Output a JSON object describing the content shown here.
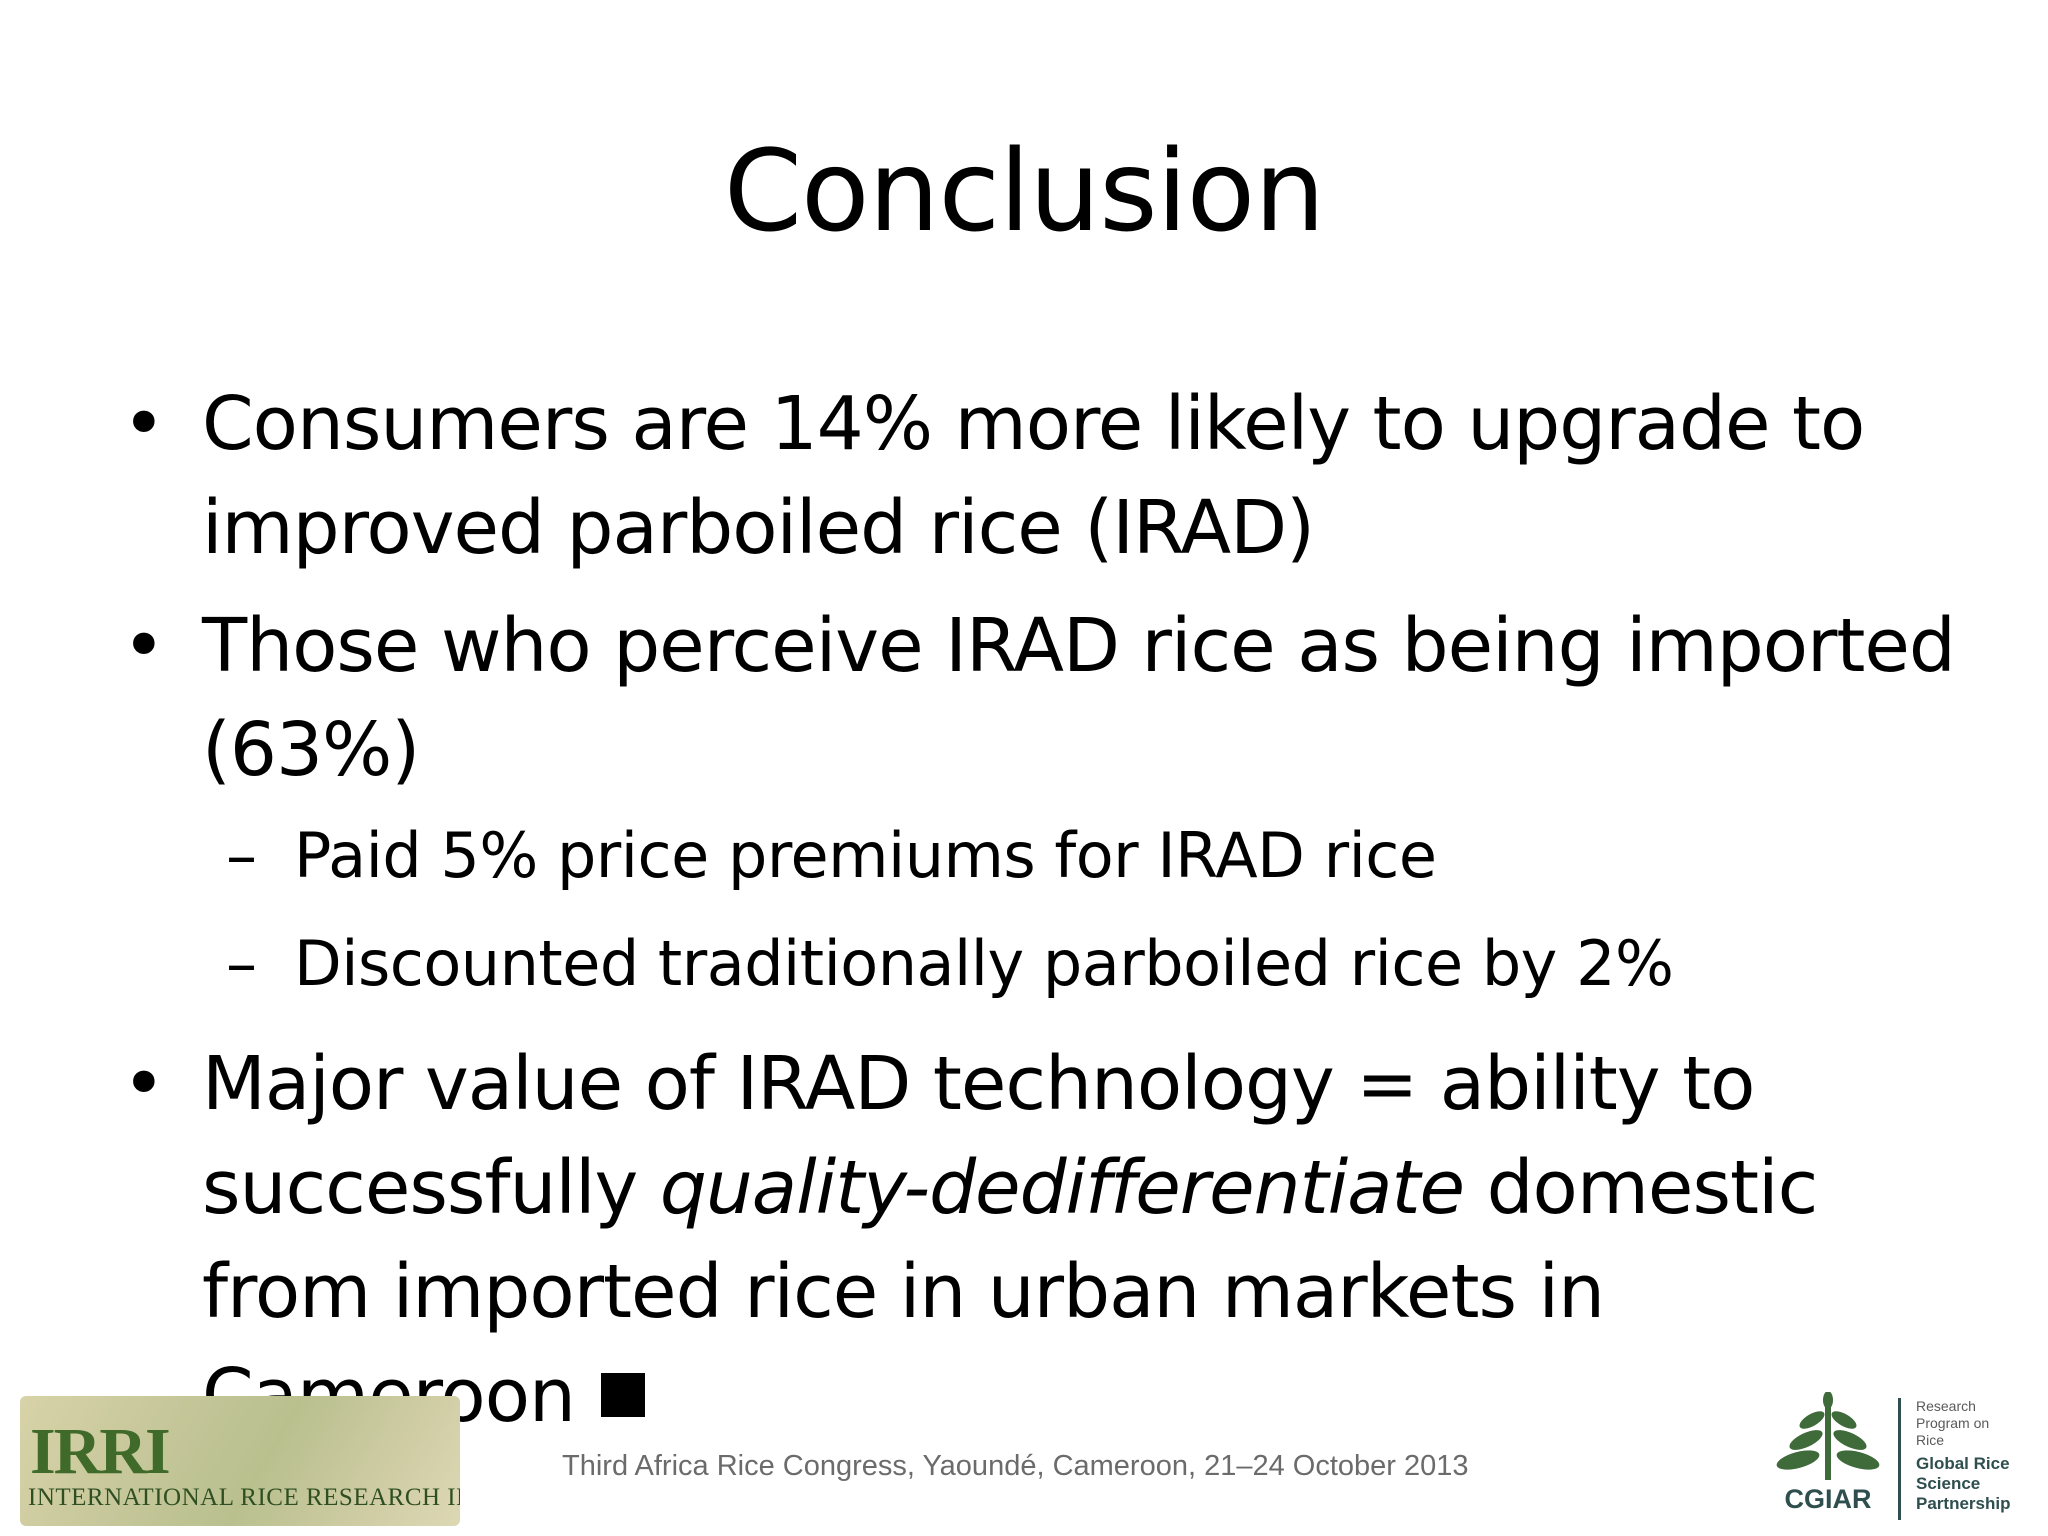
{
  "slide": {
    "title": "Conclusion",
    "bullets": [
      {
        "text": "Consumers are 14% more likely to upgrade to improved parboiled rice (IRAD)"
      },
      {
        "text": "Those who perceive IRAD rice as being imported (63%)"
      },
      {
        "before": "Major value of IRAD technology = ability to successfully ",
        "italic": "quality-dedifferentiate",
        "after": " domestic from imported rice in urban markets in Cameroon"
      }
    ],
    "sub_bullets": [
      "Paid 5% price premiums for IRAD rice",
      "Discounted traditionally parboiled rice by 2%"
    ],
    "bullet_glyph": "•",
    "dash_glyph": "–"
  },
  "footer": {
    "text": "Third Africa Rice Congress, Yaoundé, Cameroon, 21–24 October 2013"
  },
  "logos": {
    "irri": {
      "acronym": "IRRI",
      "name": "INTERNATIONAL RICE RESEARCH INSTITUTE"
    },
    "cgiar": {
      "name": "CGIAR",
      "program": [
        "Research",
        "Program on",
        "Rice"
      ],
      "partnership": [
        "Global Rice",
        "Science",
        "Partnership"
      ]
    }
  },
  "colors": {
    "text": "#000000",
    "footer": "#6b6b6b",
    "irri_green": "#3f6a2a",
    "cgiar_dark": "#2f4f4f"
  }
}
